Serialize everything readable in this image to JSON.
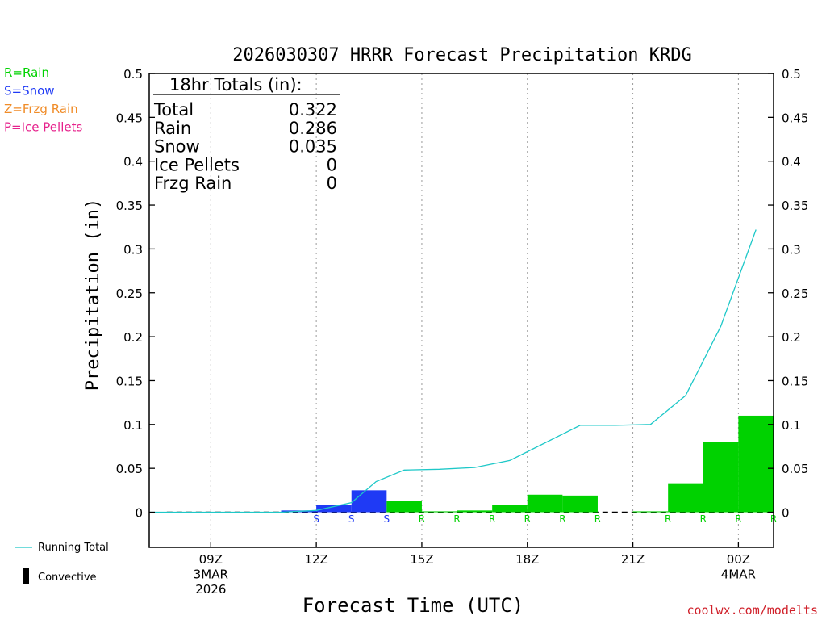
{
  "chart_data": {
    "type": "bar",
    "title": "2026030307 HRRR Forecast Precipitation KRDG",
    "xlabel": "Forecast Time (UTC)",
    "ylabel": "Precipitation (in)",
    "ylim": [
      -0.04,
      0.5
    ],
    "yticks": [
      0,
      0.05,
      0.1,
      0.15,
      0.2,
      0.25,
      0.3,
      0.35,
      0.4,
      0.45,
      0.5
    ],
    "ytick_labels": [
      "0",
      "0.05",
      "0.1",
      "0.15",
      "0.2",
      "0.25",
      "0.3",
      "0.35",
      "0.4",
      "0.45",
      "0.5"
    ],
    "xlim_hours": [
      7.25,
      25
    ],
    "xticks": [
      {
        "hour": 9,
        "lines": [
          "09Z",
          "3MAR",
          "2026"
        ]
      },
      {
        "hour": 12,
        "lines": [
          "12Z"
        ]
      },
      {
        "hour": 15,
        "lines": [
          "15Z"
        ]
      },
      {
        "hour": 18,
        "lines": [
          "18Z"
        ]
      },
      {
        "hour": 21,
        "lines": [
          "21Z"
        ]
      },
      {
        "hour": 24,
        "lines": [
          "00Z",
          "4MAR"
        ]
      }
    ],
    "hourly_precip": [
      {
        "hour": 8,
        "value": 0.0,
        "type": ""
      },
      {
        "hour": 9,
        "value": 0.0,
        "type": ""
      },
      {
        "hour": 10,
        "value": 0.0,
        "type": ""
      },
      {
        "hour": 11,
        "value": 0.0,
        "type": ""
      },
      {
        "hour": 12,
        "value": 0.002,
        "type": "S"
      },
      {
        "hour": 13,
        "value": 0.008,
        "type": "S"
      },
      {
        "hour": 14,
        "value": 0.025,
        "type": "S"
      },
      {
        "hour": 15,
        "value": 0.013,
        "type": "R"
      },
      {
        "hour": 16,
        "value": 0.001,
        "type": "R"
      },
      {
        "hour": 17,
        "value": 0.002,
        "type": "R"
      },
      {
        "hour": 18,
        "value": 0.008,
        "type": "R"
      },
      {
        "hour": 19,
        "value": 0.02,
        "type": "R"
      },
      {
        "hour": 20,
        "value": 0.019,
        "type": "R"
      },
      {
        "hour": 21,
        "value": 0.0,
        "type": ""
      },
      {
        "hour": 22,
        "value": 0.001,
        "type": "R"
      },
      {
        "hour": 23,
        "value": 0.033,
        "type": "R"
      },
      {
        "hour": 24,
        "value": 0.08,
        "type": "R"
      },
      {
        "hour": 25,
        "value": 0.11,
        "type": "R"
      }
    ],
    "running_total": [
      {
        "hour": 7.25,
        "value": 0.0
      },
      {
        "hour": 11,
        "value": 0.0
      },
      {
        "hour": 12,
        "value": 0.002
      },
      {
        "hour": 13,
        "value": 0.011
      },
      {
        "hour": 13.7,
        "value": 0.035
      },
      {
        "hour": 14.5,
        "value": 0.048
      },
      {
        "hour": 15.5,
        "value": 0.049
      },
      {
        "hour": 16.5,
        "value": 0.051
      },
      {
        "hour": 17.5,
        "value": 0.059
      },
      {
        "hour": 19.5,
        "value": 0.099
      },
      {
        "hour": 20.5,
        "value": 0.099
      },
      {
        "hour": 21.5,
        "value": 0.1
      },
      {
        "hour": 22.5,
        "value": 0.133
      },
      {
        "hour": 23.5,
        "value": 0.212
      },
      {
        "hour": 24.5,
        "value": 0.322
      }
    ],
    "colors": {
      "rain": "#00d200",
      "snow": "#1f3af5",
      "frzg_rain": "#f08c28",
      "ice_pellets": "#e6228c",
      "running_total": "#1ec8c8",
      "convective": "#000000"
    }
  },
  "totals_box": {
    "header": "18hr Totals (in):",
    "rows": [
      {
        "label": "Total",
        "value": "0.322"
      },
      {
        "label": "Rain",
        "value": "0.286"
      },
      {
        "label": "Snow",
        "value": "0.035"
      },
      {
        "label": "Ice Pellets",
        "value": "0"
      },
      {
        "label": "Frzg Rain",
        "value": "0"
      }
    ]
  },
  "type_legend": [
    {
      "text": "R=Rain",
      "color": "#00d200"
    },
    {
      "text": "S=Snow",
      "color": "#1f3af5"
    },
    {
      "text": "Z=Frzg Rain",
      "color": "#f08c28"
    },
    {
      "text": "P=Ice Pellets",
      "color": "#e6228c"
    }
  ],
  "bottom_legend": {
    "running_total": "Running Total",
    "convective": "Convective"
  },
  "credit": "coolwx.com/modelts"
}
